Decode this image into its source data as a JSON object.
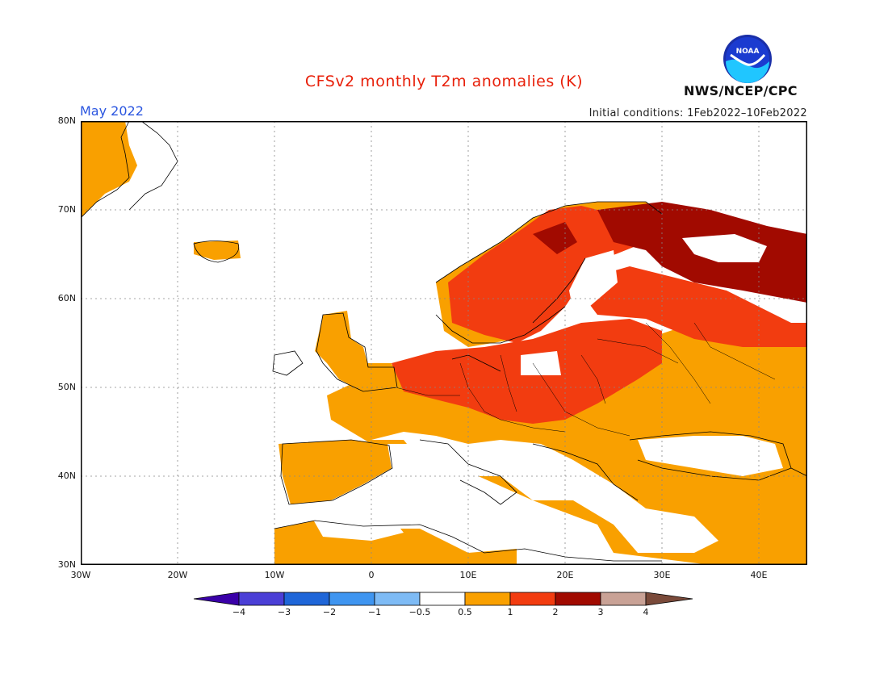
{
  "header": {
    "title": "CFSv2 monthly T2m anomalies (K)",
    "period": "May 2022",
    "initial_conditions": "Initial conditions: 1Feb2022–10Feb2022",
    "agency": "NWS/NCEP/CPC",
    "logo_text": "NOAA"
  },
  "map": {
    "lon_range": [
      -30,
      45
    ],
    "lat_range": [
      30,
      80
    ],
    "lat_labels": [
      "80N",
      "70N",
      "60N",
      "50N",
      "40N",
      "30N"
    ],
    "lon_labels": [
      "30W",
      "20W",
      "10W",
      "0",
      "10E",
      "20E",
      "30E",
      "40E"
    ],
    "grid": "dotted",
    "regions": [
      {
        "name": "greenland",
        "anomaly_class": "0.5-1",
        "color": "#f9a000"
      },
      {
        "name": "scandinavia",
        "anomaly_class": "1-2",
        "color": "#f23c10"
      },
      {
        "name": "northwest-russia",
        "anomaly_class": "2-3",
        "color": "#a10a00"
      },
      {
        "name": "central-europe",
        "anomaly_class": "1-2",
        "color": "#f23c10"
      },
      {
        "name": "iberia",
        "anomaly_class": "0.5-1",
        "color": "#f9a000"
      },
      {
        "name": "eastern-europe",
        "anomaly_class": "0.5-1",
        "color": "#f9a000"
      },
      {
        "name": "mediterranean",
        "anomaly_class": "-0.5-0.5",
        "color": "#ffffff"
      }
    ]
  },
  "colorbar": {
    "ticks": [
      "−4",
      "−3",
      "−2",
      "−1",
      "−0.5",
      "0.5",
      "1",
      "2",
      "3",
      "4"
    ],
    "colors": [
      "#3a00a8",
      "#4b3fd6",
      "#1f66d8",
      "#3f95f0",
      "#7ebbf5",
      "#ffffff",
      "#f9a000",
      "#f23c10",
      "#a10a00",
      "#c9a296",
      "#7a4a3a"
    ]
  }
}
